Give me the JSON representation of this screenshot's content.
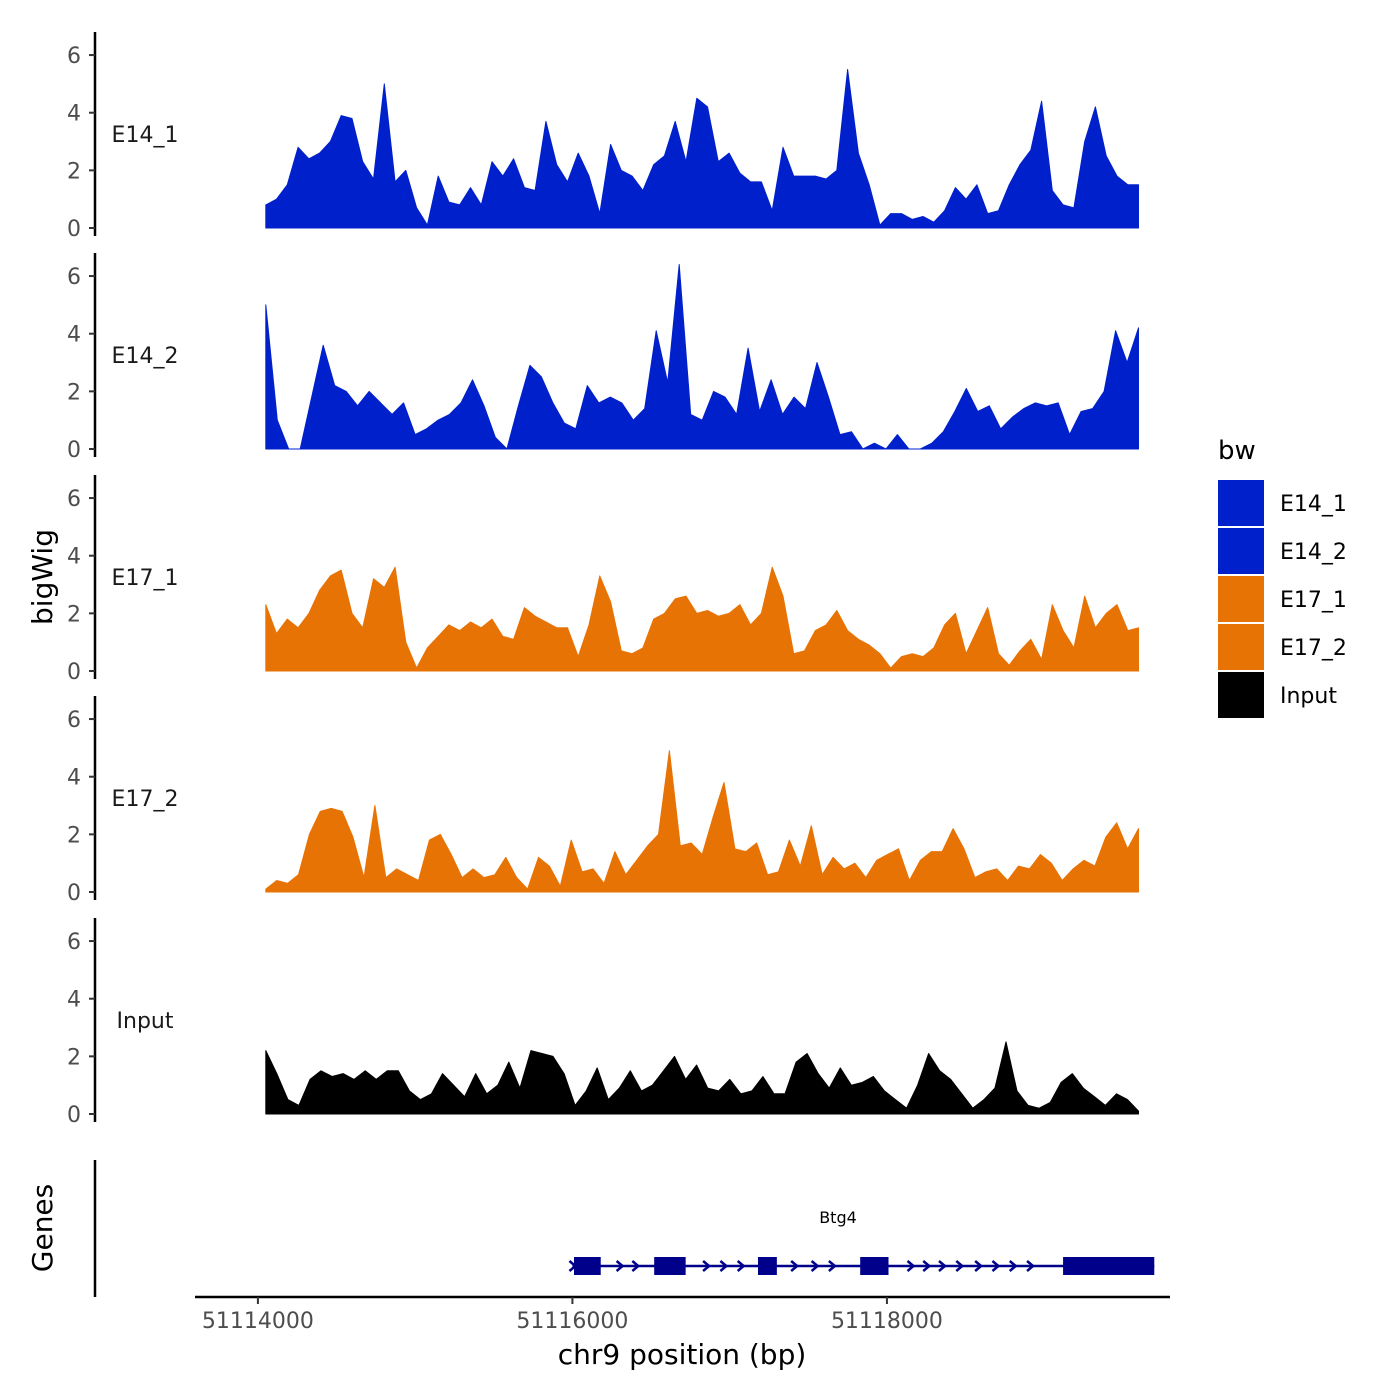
{
  "chart_data": {
    "type": "area",
    "ylabel": "bigWig",
    "genes_label": "Genes",
    "xlabel": "chr9 position (bp)",
    "xlim": [
      51113600,
      51119800
    ],
    "data_range": [
      51114050,
      51119600
    ],
    "x_ticks": [
      51114000,
      51116000,
      51118000
    ],
    "x_tick_labels": [
      "51114000",
      "51116000",
      "51118000"
    ],
    "ylim": [
      0,
      6.8
    ],
    "y_ticks": [
      0,
      2,
      4,
      6
    ],
    "y_tick_labels": [
      "0",
      "2",
      "4",
      "6"
    ],
    "legend": {
      "title": "bw",
      "position": "right",
      "items": [
        {
          "label": "E14_1",
          "color": "#0020CC"
        },
        {
          "label": "E14_2",
          "color": "#0020CC"
        },
        {
          "label": "E17_1",
          "color": "#E87305"
        },
        {
          "label": "E17_2",
          "color": "#E87305"
        },
        {
          "label": "Input",
          "color": "#000000"
        }
      ]
    },
    "series": [
      {
        "name": "E14_1",
        "color": "#0020CC",
        "values": [
          0.8,
          1.0,
          1.5,
          2.8,
          2.4,
          2.6,
          3.0,
          3.9,
          3.8,
          2.3,
          1.7,
          5.0,
          1.6,
          2.0,
          0.7,
          0.1,
          1.8,
          0.9,
          0.8,
          1.4,
          0.8,
          2.3,
          1.8,
          2.4,
          1.4,
          1.3,
          3.7,
          2.2,
          1.6,
          2.6,
          1.8,
          0.5,
          2.9,
          2.0,
          1.8,
          1.3,
          2.2,
          2.5,
          3.7,
          2.3,
          4.5,
          4.2,
          2.3,
          2.6,
          1.9,
          1.6,
          1.6,
          0.6,
          2.8,
          1.8,
          1.8,
          1.8,
          1.7,
          2.0,
          5.5,
          2.6,
          1.5,
          0.1,
          0.5,
          0.5,
          0.3,
          0.4,
          0.2,
          0.6,
          1.4,
          1.0,
          1.5,
          0.5,
          0.6,
          1.5,
          2.2,
          2.7,
          4.4,
          1.3,
          0.8,
          0.7,
          3.0,
          4.2,
          2.5,
          1.8,
          1.5,
          1.5
        ]
      },
      {
        "name": "E14_2",
        "color": "#0020CC",
        "values": [
          5.0,
          1.0,
          0.0,
          0.0,
          1.8,
          3.6,
          2.2,
          2.0,
          1.5,
          2.0,
          1.6,
          1.2,
          1.6,
          0.5,
          0.7,
          1.0,
          1.2,
          1.6,
          2.4,
          1.5,
          0.4,
          0.0,
          1.5,
          2.9,
          2.5,
          1.6,
          0.9,
          0.7,
          2.2,
          1.6,
          1.8,
          1.6,
          1.0,
          1.4,
          4.1,
          2.3,
          6.4,
          1.2,
          1.0,
          2.0,
          1.8,
          1.2,
          3.5,
          1.3,
          2.4,
          1.2,
          1.8,
          1.4,
          3.0,
          1.8,
          0.5,
          0.6,
          0.0,
          0.2,
          0.0,
          0.5,
          0.0,
          0.0,
          0.2,
          0.6,
          1.3,
          2.1,
          1.3,
          1.5,
          0.7,
          1.1,
          1.4,
          1.6,
          1.5,
          1.6,
          0.5,
          1.3,
          1.4,
          2.0,
          4.1,
          3.0,
          4.2
        ]
      },
      {
        "name": "E17_1",
        "color": "#E87305",
        "values": [
          2.3,
          1.3,
          1.8,
          1.5,
          2.0,
          2.8,
          3.3,
          3.5,
          2.0,
          1.5,
          3.2,
          2.9,
          3.6,
          1.0,
          0.1,
          0.8,
          1.2,
          1.6,
          1.4,
          1.7,
          1.5,
          1.8,
          1.2,
          1.1,
          2.2,
          1.9,
          1.7,
          1.5,
          1.5,
          0.5,
          1.6,
          3.3,
          2.4,
          0.7,
          0.6,
          0.8,
          1.8,
          2.0,
          2.5,
          2.6,
          2.0,
          2.1,
          1.9,
          2.0,
          2.3,
          1.6,
          2.0,
          3.6,
          2.6,
          0.6,
          0.7,
          1.4,
          1.6,
          2.1,
          1.4,
          1.1,
          0.9,
          0.6,
          0.1,
          0.5,
          0.6,
          0.5,
          0.8,
          1.6,
          2.0,
          0.6,
          1.4,
          2.2,
          0.6,
          0.2,
          0.7,
          1.1,
          0.4,
          2.3,
          1.4,
          0.8,
          2.6,
          1.5,
          2.0,
          2.3,
          1.4,
          1.5
        ]
      },
      {
        "name": "E17_2",
        "color": "#E87305",
        "values": [
          0.1,
          0.4,
          0.3,
          0.6,
          2.0,
          2.8,
          2.9,
          2.8,
          1.9,
          0.5,
          3.0,
          0.5,
          0.8,
          0.6,
          0.4,
          1.8,
          2.0,
          1.3,
          0.5,
          0.8,
          0.5,
          0.6,
          1.2,
          0.5,
          0.1,
          1.2,
          0.9,
          0.2,
          1.8,
          0.7,
          0.8,
          0.3,
          1.4,
          0.6,
          1.1,
          1.6,
          2.0,
          4.9,
          1.6,
          1.7,
          1.3,
          2.6,
          3.8,
          1.5,
          1.4,
          1.7,
          0.6,
          0.7,
          1.8,
          0.9,
          2.3,
          0.6,
          1.2,
          0.8,
          1.0,
          0.5,
          1.1,
          1.3,
          1.5,
          0.4,
          1.1,
          1.4,
          1.4,
          2.2,
          1.5,
          0.5,
          0.7,
          0.8,
          0.4,
          0.9,
          0.8,
          1.3,
          1.0,
          0.4,
          0.8,
          1.1,
          0.9,
          1.9,
          2.4,
          1.5,
          2.2
        ]
      },
      {
        "name": "Input",
        "color": "#000000",
        "values": [
          2.2,
          1.4,
          0.5,
          0.3,
          1.2,
          1.5,
          1.3,
          1.4,
          1.2,
          1.5,
          1.2,
          1.5,
          1.5,
          0.8,
          0.5,
          0.7,
          1.4,
          1.0,
          0.6,
          1.4,
          0.7,
          1.0,
          1.8,
          0.9,
          2.2,
          2.1,
          2.0,
          1.4,
          0.3,
          0.8,
          1.6,
          0.5,
          0.9,
          1.5,
          0.8,
          1.0,
          1.5,
          2.0,
          1.2,
          1.7,
          0.9,
          0.8,
          1.2,
          0.7,
          0.8,
          1.3,
          0.7,
          0.7,
          1.8,
          2.1,
          1.4,
          0.9,
          1.6,
          1.0,
          1.1,
          1.3,
          0.8,
          0.5,
          0.2,
          1.0,
          2.1,
          1.5,
          1.2,
          0.7,
          0.2,
          0.5,
          0.9,
          2.5,
          0.8,
          0.3,
          0.2,
          0.4,
          1.1,
          1.4,
          0.9,
          0.6,
          0.3,
          0.7,
          0.5,
          0.1
        ]
      }
    ],
    "genes": [
      {
        "name": "Btg4",
        "strand": "+",
        "color": "#00008B",
        "start": 51116000,
        "end": 51119700,
        "exons": [
          [
            51116010,
            51116180
          ],
          [
            51116520,
            51116720
          ],
          [
            51117180,
            51117300
          ],
          [
            51117830,
            51118010
          ],
          [
            51119120,
            51119700
          ]
        ],
        "chevrons": [
          51116000,
          51116300,
          51116400,
          51116850,
          51116960,
          51117070,
          51117410,
          51117540,
          51117650,
          51118150,
          51118250,
          51118350,
          51118460,
          51118580,
          51118690,
          51118800,
          51118910
        ]
      }
    ]
  }
}
